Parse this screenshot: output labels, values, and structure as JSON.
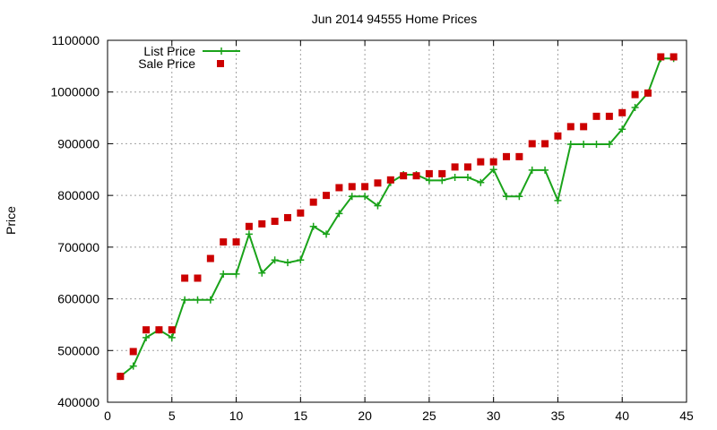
{
  "chart_data": {
    "type": "line",
    "title": "Jun 2014 94555 Home Prices",
    "xlabel": "",
    "ylabel": "Price",
    "xlim": [
      0,
      45
    ],
    "ylim": [
      400000,
      1100000
    ],
    "x_ticks": [
      0,
      5,
      10,
      15,
      20,
      25,
      30,
      35,
      40,
      45
    ],
    "y_ticks": [
      400000,
      500000,
      600000,
      700000,
      800000,
      900000,
      1000000,
      1100000
    ],
    "grid": true,
    "legend_position": "top-left",
    "series": [
      {
        "name": "List Price",
        "style": "line-with-plus-markers",
        "color": "#1aa31a",
        "points": [
          [
            1,
            450000
          ],
          [
            2,
            470000
          ],
          [
            3,
            525000
          ],
          [
            4,
            540000
          ],
          [
            5,
            525000
          ],
          [
            6,
            598000
          ],
          [
            7,
            598000
          ],
          [
            8,
            598000
          ],
          [
            9,
            648000
          ],
          [
            10,
            648000
          ],
          [
            11,
            725000
          ],
          [
            12,
            650000
          ],
          [
            13,
            675000
          ],
          [
            14,
            670000
          ],
          [
            15,
            675000
          ],
          [
            16,
            740000
          ],
          [
            17,
            725000
          ],
          [
            18,
            765000
          ],
          [
            19,
            798000
          ],
          [
            20,
            798000
          ],
          [
            21,
            780000
          ],
          [
            22,
            825000
          ],
          [
            23,
            840000
          ],
          [
            24,
            840000
          ],
          [
            25,
            829000
          ],
          [
            26,
            829000
          ],
          [
            27,
            835000
          ],
          [
            28,
            835000
          ],
          [
            29,
            825000
          ],
          [
            30,
            850000
          ],
          [
            31,
            798000
          ],
          [
            32,
            798000
          ],
          [
            33,
            849000
          ],
          [
            34,
            849000
          ],
          [
            35,
            790000
          ],
          [
            36,
            899000
          ],
          [
            37,
            899000
          ],
          [
            38,
            899000
          ],
          [
            39,
            899000
          ],
          [
            40,
            928000
          ],
          [
            41,
            970000
          ],
          [
            42,
            998000
          ],
          [
            43,
            1065000
          ],
          [
            44,
            1065000
          ]
        ]
      },
      {
        "name": "Sale Price",
        "style": "square-markers",
        "color": "#cc0000",
        "points": [
          [
            1,
            450000
          ],
          [
            2,
            498000
          ],
          [
            3,
            540000
          ],
          [
            4,
            540000
          ],
          [
            5,
            540000
          ],
          [
            6,
            640000
          ],
          [
            7,
            640000
          ],
          [
            8,
            678000
          ],
          [
            9,
            710000
          ],
          [
            10,
            710000
          ],
          [
            11,
            740000
          ],
          [
            12,
            745000
          ],
          [
            13,
            750000
          ],
          [
            14,
            757000
          ],
          [
            15,
            766000
          ],
          [
            16,
            787000
          ],
          [
            17,
            800000
          ],
          [
            18,
            815000
          ],
          [
            19,
            817000
          ],
          [
            20,
            817000
          ],
          [
            21,
            824000
          ],
          [
            22,
            830000
          ],
          [
            23,
            838000
          ],
          [
            24,
            838000
          ],
          [
            25,
            842000
          ],
          [
            26,
            842000
          ],
          [
            27,
            855000
          ],
          [
            28,
            855000
          ],
          [
            29,
            865000
          ],
          [
            30,
            865000
          ],
          [
            31,
            875000
          ],
          [
            32,
            875000
          ],
          [
            33,
            900000
          ],
          [
            34,
            900000
          ],
          [
            35,
            915000
          ],
          [
            36,
            933000
          ],
          [
            37,
            933000
          ],
          [
            38,
            953000
          ],
          [
            39,
            953000
          ],
          [
            40,
            960000
          ],
          [
            41,
            995000
          ],
          [
            42,
            998000
          ],
          [
            43,
            1068000
          ],
          [
            44,
            1068000
          ]
        ]
      }
    ]
  }
}
